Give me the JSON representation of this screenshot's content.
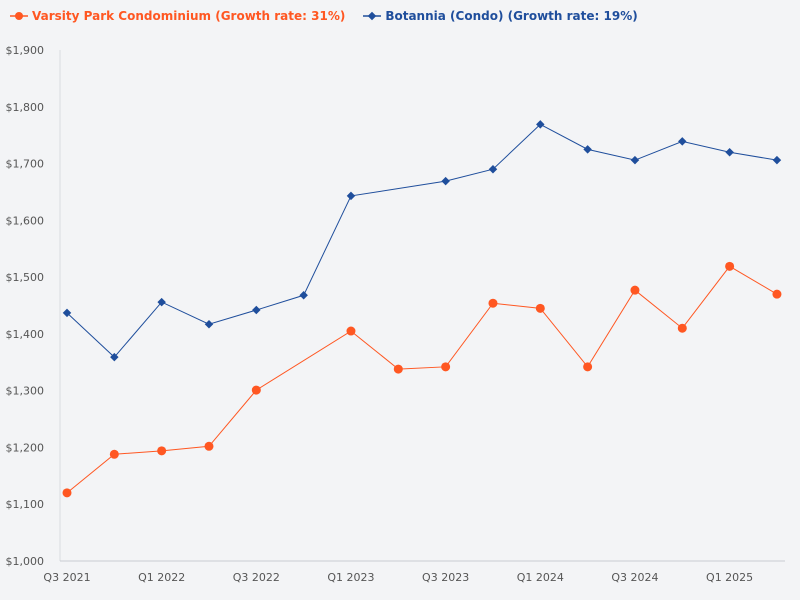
{
  "chart_data": {
    "type": "line",
    "categories": [
      "Q3 2021",
      "Q4 2021",
      "Q1 2022",
      "Q2 2022",
      "Q3 2022",
      "Q4 2022",
      "Q1 2023",
      "Q2 2023",
      "Q3 2023",
      "Q4 2023",
      "Q1 2024",
      "Q2 2024",
      "Q3 2024",
      "Q4 2024",
      "Q1 2025",
      "Q2 2025"
    ],
    "x_tick_labels": [
      "Q3 2021",
      "Q1 2022",
      "Q3 2022",
      "Q1 2023",
      "Q3 2023",
      "Q1 2024",
      "Q3 2024",
      "Q1 2025"
    ],
    "ylim": [
      1000,
      1900
    ],
    "y_tick_labels": [
      "$1,000",
      "$1,100",
      "$1,200",
      "$1,300",
      "$1,400",
      "$1,500",
      "$1,600",
      "$1,700",
      "$1,800",
      "$1,900"
    ],
    "y_ticks": [
      1000,
      1100,
      1200,
      1300,
      1400,
      1500,
      1600,
      1700,
      1800,
      1900
    ],
    "grid": false,
    "legend_placement": "top-left",
    "series": [
      {
        "name": "Varsity Park Condominium (Growth rate: 31%)",
        "color": "#ff5722",
        "marker": "circle",
        "values": [
          1120,
          1188,
          1194,
          1202,
          1301,
          null,
          1405,
          1338,
          1342,
          1454,
          1445,
          1342,
          1477,
          1410,
          1519,
          1470
        ]
      },
      {
        "name": "Botannia (Condo) (Growth rate: 19%)",
        "color": "#1f4e9c",
        "marker": "diamond",
        "values": [
          1437,
          1359,
          1456,
          1417,
          1442,
          1468,
          1643,
          null,
          1669,
          1690,
          1769,
          1725,
          1706,
          1739,
          1720,
          1706
        ]
      }
    ]
  }
}
